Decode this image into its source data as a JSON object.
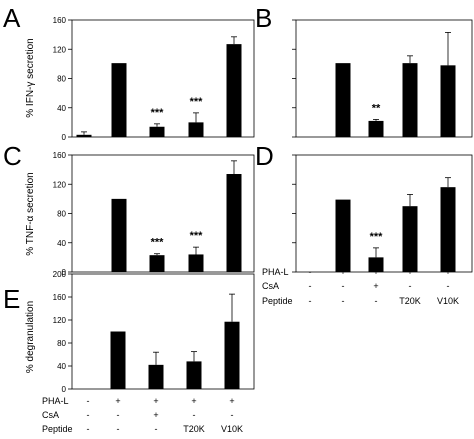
{
  "figure": {
    "condition_rows": {
      "top_right": {
        "labels": [
          "PHA-L",
          "CsA",
          "Peptide"
        ],
        "values": [
          [
            "-",
            "+",
            "+",
            "+",
            "+"
          ],
          [
            "-",
            "-",
            "+",
            "-",
            "-"
          ],
          [
            "-",
            "-",
            "-",
            "T20K",
            "V10K"
          ]
        ]
      },
      "bottom_left": {
        "labels": [
          "PHA-L",
          "CsA",
          "Peptide"
        ],
        "values": [
          [
            "-",
            "+",
            "+",
            "+",
            "+"
          ],
          [
            "-",
            "-",
            "+",
            "-",
            "-"
          ],
          [
            "-",
            "-",
            "-",
            "T20K",
            "V10K"
          ]
        ]
      }
    }
  },
  "chart_data": [
    {
      "panel": "A",
      "type": "bar",
      "ylabel": "% IFN-γ secretion",
      "ylim": [
        0,
        160
      ],
      "yticks": [
        0,
        40,
        80,
        120,
        160
      ],
      "show_ytick_labels": true,
      "values": [
        3,
        101,
        14,
        20,
        127
      ],
      "errors": [
        4,
        0,
        4,
        13,
        10
      ],
      "significance": [
        "",
        "",
        "***",
        "***",
        ""
      ]
    },
    {
      "panel": "B",
      "type": "bar",
      "ylabel": "",
      "ylim": [
        0,
        160
      ],
      "yticks": [
        0,
        40,
        80,
        120,
        160
      ],
      "show_ytick_labels": false,
      "values": [
        0,
        101,
        22,
        101,
        98
      ],
      "errors": [
        0,
        0,
        2,
        10,
        45
      ],
      "significance": [
        "",
        "",
        "**",
        "",
        ""
      ]
    },
    {
      "panel": "C",
      "type": "bar",
      "ylabel": "% TNF-α secretion",
      "ylim": [
        0,
        160
      ],
      "yticks": [
        0,
        40,
        80,
        120,
        160
      ],
      "show_ytick_labels": true,
      "values": [
        0,
        100,
        23,
        24,
        134
      ],
      "errors": [
        0,
        0,
        2,
        10,
        18
      ],
      "significance": [
        "",
        "",
        "***",
        "***",
        ""
      ]
    },
    {
      "panel": "D",
      "type": "bar",
      "ylabel": "",
      "ylim": [
        0,
        160
      ],
      "yticks": [
        0,
        40,
        80,
        120,
        160
      ],
      "show_ytick_labels": false,
      "values": [
        0,
        99,
        20,
        90,
        116
      ],
      "errors": [
        0,
        0,
        13,
        16,
        13
      ],
      "significance": [
        "",
        "",
        "***",
        "",
        ""
      ]
    },
    {
      "panel": "E",
      "type": "bar",
      "ylabel": "% degranulation",
      "ylim": [
        0,
        200
      ],
      "yticks": [
        0,
        40,
        80,
        120,
        160,
        200
      ],
      "show_ytick_labels": true,
      "values": [
        0,
        100,
        42,
        48,
        117
      ],
      "errors": [
        0,
        0,
        22,
        17,
        48
      ],
      "significance": [
        "",
        "",
        "",
        "",
        ""
      ]
    }
  ]
}
